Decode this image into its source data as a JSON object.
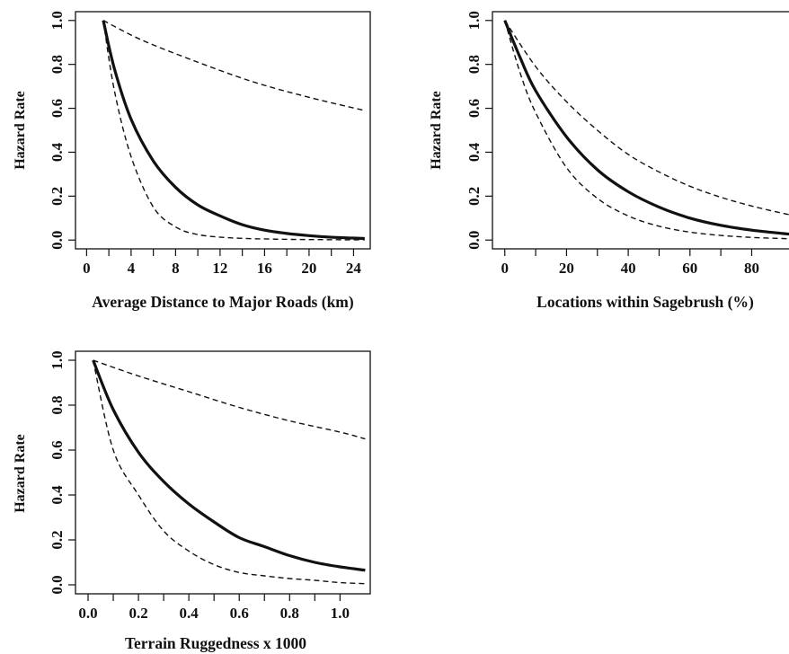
{
  "chart_data": [
    {
      "type": "line",
      "title": "",
      "xlabel": "Average Distance to Major Roads (km)",
      "ylabel": "Hazard Rate",
      "xlim": [
        -1,
        25.5
      ],
      "ylim": [
        -0.04,
        1.04
      ],
      "x_ticks": [
        "0",
        "4",
        "8",
        "12",
        "16",
        "20",
        "24"
      ],
      "y_ticks": [
        "0.0",
        "0.2",
        "0.4",
        "0.6",
        "0.8",
        "1.0"
      ],
      "grid": false,
      "series": [
        {
          "style": "solid",
          "x": [
            1.5,
            2.5,
            4,
            6,
            8,
            10,
            12,
            14,
            16,
            18,
            20,
            22,
            24,
            25
          ],
          "y": [
            1.0,
            0.78,
            0.55,
            0.36,
            0.24,
            0.16,
            0.11,
            0.07,
            0.045,
            0.03,
            0.02,
            0.013,
            0.009,
            0.007
          ]
        },
        {
          "style": "dashed",
          "x": [
            1.5,
            5,
            10,
            15,
            20,
            25
          ],
          "y": [
            1.0,
            0.91,
            0.81,
            0.72,
            0.65,
            0.59
          ]
        },
        {
          "style": "dashed",
          "x": [
            1.5,
            2.5,
            4,
            6,
            8,
            10,
            13,
            17,
            21,
            25
          ],
          "y": [
            1.0,
            0.68,
            0.38,
            0.15,
            0.06,
            0.025,
            0.01,
            0.004,
            0.002,
            0.001
          ]
        }
      ]
    },
    {
      "type": "line",
      "title": "",
      "xlabel": "Locations within Sagebrush (%)",
      "ylabel": "Hazard Rate",
      "xlim": [
        -4,
        95
      ],
      "ylim": [
        -0.04,
        1.04
      ],
      "x_ticks": [
        "0",
        "20",
        "40",
        "60",
        "80"
      ],
      "y_ticks": [
        "0.0",
        "0.2",
        "0.4",
        "0.6",
        "0.8",
        "1.0"
      ],
      "grid": false,
      "series": [
        {
          "style": "solid",
          "x": [
            0,
            5,
            10,
            20,
            30,
            40,
            50,
            60,
            70,
            80,
            90,
            95
          ],
          "y": [
            1.0,
            0.83,
            0.68,
            0.47,
            0.32,
            0.22,
            0.15,
            0.1,
            0.067,
            0.045,
            0.03,
            0.024
          ]
        },
        {
          "style": "dashed",
          "x": [
            0,
            10,
            20,
            30,
            40,
            50,
            60,
            70,
            80,
            90,
            95
          ],
          "y": [
            1.0,
            0.79,
            0.63,
            0.5,
            0.39,
            0.31,
            0.245,
            0.195,
            0.155,
            0.122,
            0.108
          ]
        },
        {
          "style": "dashed",
          "x": [
            0,
            5,
            10,
            20,
            30,
            40,
            50,
            60,
            70,
            80,
            90,
            95
          ],
          "y": [
            1.0,
            0.76,
            0.58,
            0.33,
            0.19,
            0.11,
            0.063,
            0.036,
            0.021,
            0.012,
            0.007,
            0.005
          ]
        }
      ]
    },
    {
      "type": "line",
      "title": "",
      "xlabel": "Terrain Ruggedness x 1000",
      "ylabel": "Hazard Rate",
      "xlim": [
        -0.05,
        1.12
      ],
      "ylim": [
        -0.04,
        1.04
      ],
      "x_ticks": [
        "0.0",
        "0.2",
        "0.4",
        "0.6",
        "0.8",
        "1.0"
      ],
      "y_ticks": [
        "0.0",
        "0.2",
        "0.4",
        "0.6",
        "0.8",
        "1.0"
      ],
      "grid": false,
      "series": [
        {
          "style": "solid",
          "x": [
            0.02,
            0.1,
            0.2,
            0.3,
            0.4,
            0.5,
            0.6,
            0.7,
            0.8,
            0.9,
            1.0,
            1.1
          ],
          "y": [
            1.0,
            0.78,
            0.59,
            0.46,
            0.36,
            0.28,
            0.21,
            0.17,
            0.13,
            0.1,
            0.08,
            0.065
          ]
        },
        {
          "style": "dashed",
          "x": [
            0.02,
            0.2,
            0.4,
            0.6,
            0.8,
            1.0,
            1.1
          ],
          "y": [
            1.0,
            0.93,
            0.86,
            0.79,
            0.73,
            0.68,
            0.65
          ]
        },
        {
          "style": "dashed",
          "x": [
            0.02,
            0.1,
            0.2,
            0.3,
            0.4,
            0.5,
            0.6,
            0.7,
            0.8,
            0.9,
            1.0,
            1.1
          ],
          "y": [
            1.0,
            0.6,
            0.4,
            0.24,
            0.15,
            0.09,
            0.055,
            0.04,
            0.028,
            0.02,
            0.01,
            0.005
          ]
        }
      ]
    }
  ]
}
